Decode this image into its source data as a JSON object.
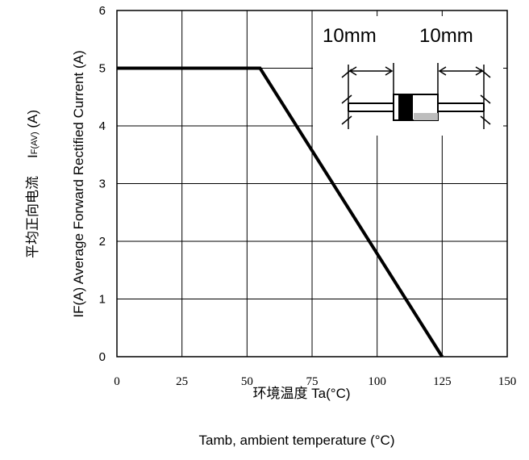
{
  "chart_data": {
    "type": "line",
    "series": [
      {
        "x": [
          0,
          55,
          125
        ],
        "y": [
          5,
          5,
          0
        ]
      }
    ],
    "xlim": [
      0,
      150
    ],
    "ylim": [
      0,
      6
    ],
    "x_ticks": [
      0,
      25,
      50,
      75,
      100,
      125,
      150
    ],
    "y_ticks": [
      0,
      1,
      2,
      3,
      4,
      5,
      6
    ],
    "grid": true,
    "legend": "none",
    "xlabel_cn": "环境温度 Ta(°C)",
    "xlabel_en": "Tamb, ambient temperature (°C)",
    "ylabel_en": "IF(A)  Average Forward Rectified Current (A)",
    "ylabel_cn": "平均正向电流",
    "ylabel_sym": "I",
    "ylabel_sym_sub": "F(AV)",
    "ylabel_sym_unit": " (A)",
    "inset": {
      "label_left": "10mm",
      "label_right": "10mm"
    },
    "colors": {
      "line": "#000000",
      "grid": "#000000",
      "inset_body": "#ffffff"
    }
  }
}
